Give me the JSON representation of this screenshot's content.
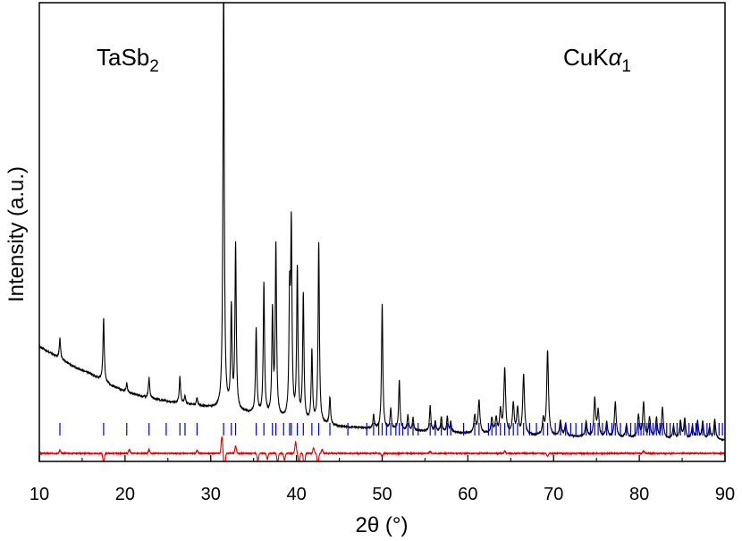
{
  "chart_data": {
    "type": "line",
    "title": "",
    "xlabel": "2θ (°)",
    "ylabel": "Intensity (a.u.)",
    "xlim": [
      10,
      90
    ],
    "ylim": [
      0,
      100
    ],
    "x_ticks": [
      "10",
      "20",
      "30",
      "40",
      "50",
      "60",
      "70",
      "80",
      "90"
    ],
    "y_ticks_shown": false,
    "grid": false,
    "legend": "none",
    "annotations": [
      {
        "text": "TaSb",
        "sub": "2",
        "position": "top-left"
      },
      {
        "text": "CuK",
        "italic": "α",
        "sub": "1",
        "position": "top-right"
      }
    ],
    "colors": {
      "observed": "#000000",
      "bragg": "#0000cc",
      "difference": "#e00000"
    },
    "series": [
      {
        "kind": "observed",
        "baseline": [
          [
            10,
            21.5
          ],
          [
            12,
            19.5
          ],
          [
            14,
            17.5
          ],
          [
            16,
            16.0
          ],
          [
            18,
            14.0
          ],
          [
            20,
            12.5
          ],
          [
            22,
            11.5
          ],
          [
            25,
            10.5
          ],
          [
            28,
            9.8
          ],
          [
            31,
            9.0
          ],
          [
            35,
            8.0
          ],
          [
            40,
            6.5
          ],
          [
            45,
            5.5
          ],
          [
            50,
            5.0
          ],
          [
            60,
            4.2
          ],
          [
            70,
            3.6
          ],
          [
            80,
            3.2
          ],
          [
            90,
            2.8
          ]
        ],
        "peaks": [
          [
            12.4,
            4.0
          ],
          [
            17.5,
            12.5
          ],
          [
            20.2,
            1.8
          ],
          [
            22.8,
            4.0
          ],
          [
            26.4,
            5.2
          ],
          [
            27.0,
            1.5
          ],
          [
            28.4,
            1.5
          ],
          [
            31.5,
            86.0
          ],
          [
            32.4,
            20.0
          ],
          [
            32.9,
            33.0
          ],
          [
            35.3,
            17.0
          ],
          [
            36.2,
            26.0
          ],
          [
            37.2,
            20.5
          ],
          [
            37.6,
            34.0
          ],
          [
            39.2,
            23.0
          ],
          [
            39.4,
            37.0
          ],
          [
            40.1,
            30.0
          ],
          [
            40.8,
            25.0
          ],
          [
            41.8,
            14.0
          ],
          [
            42.6,
            36.0
          ],
          [
            43.9,
            5.5
          ],
          [
            49.0,
            2.5
          ],
          [
            50.0,
            25.0
          ],
          [
            51.0,
            4.0
          ],
          [
            52.0,
            10.0
          ],
          [
            53.0,
            3.0
          ],
          [
            53.6,
            2.5
          ],
          [
            55.6,
            5.0
          ],
          [
            56.2,
            2.0
          ],
          [
            56.9,
            3.0
          ],
          [
            57.6,
            3.0
          ],
          [
            58.0,
            2.0
          ],
          [
            60.8,
            3.5
          ],
          [
            61.3,
            6.5
          ],
          [
            62.8,
            3.0
          ],
          [
            63.3,
            3.0
          ],
          [
            63.8,
            4.5
          ],
          [
            64.3,
            13.0
          ],
          [
            65.3,
            6.0
          ],
          [
            65.8,
            5.0
          ],
          [
            66.5,
            12.0
          ],
          [
            68.8,
            3.0
          ],
          [
            69.3,
            17.0
          ],
          [
            70.8,
            3.0
          ],
          [
            71.4,
            2.5
          ],
          [
            73.8,
            3.0
          ],
          [
            74.8,
            7.5
          ],
          [
            75.2,
            5.0
          ],
          [
            76.2,
            3.0
          ],
          [
            77.2,
            7.0
          ],
          [
            78.5,
            2.5
          ],
          [
            79.9,
            4.5
          ],
          [
            80.5,
            7.0
          ],
          [
            81.2,
            4.0
          ],
          [
            82.0,
            4.0
          ],
          [
            82.7,
            6.0
          ],
          [
            84.0,
            2.5
          ],
          [
            84.8,
            3.5
          ],
          [
            85.3,
            4.0
          ],
          [
            86.2,
            2.5
          ],
          [
            86.8,
            3.5
          ],
          [
            87.4,
            3.5
          ],
          [
            88.2,
            2.5
          ],
          [
            88.8,
            4.0
          ]
        ]
      },
      {
        "kind": "bragg",
        "positions": [
          12.4,
          17.5,
          20.2,
          22.8,
          24.8,
          26.4,
          27.0,
          28.4,
          31.5,
          32.4,
          32.9,
          35.3,
          36.2,
          37.2,
          37.6,
          38.5,
          39.2,
          39.4,
          40.1,
          40.8,
          41.8,
          42.6,
          43.9,
          46.0,
          48.2,
          49.0,
          49.6,
          50.0,
          50.5,
          51.0,
          51.6,
          52.0,
          52.4,
          53.0,
          53.6,
          54.2,
          55.6,
          56.2,
          56.9,
          57.6,
          58.0,
          59.5,
          60.8,
          61.3,
          62.4,
          62.8,
          63.3,
          63.8,
          64.3,
          64.8,
          65.3,
          65.8,
          66.5,
          67.2,
          68.0,
          68.8,
          69.3,
          70.2,
          70.8,
          71.4,
          72.0,
          72.6,
          73.3,
          73.8,
          74.3,
          74.8,
          75.2,
          75.7,
          76.2,
          76.8,
          77.2,
          77.8,
          78.5,
          79.0,
          79.5,
          79.9,
          80.2,
          80.5,
          80.9,
          81.2,
          81.6,
          82.0,
          82.4,
          82.7,
          83.2,
          83.6,
          84.0,
          84.4,
          84.8,
          85.3,
          85.8,
          86.2,
          86.6,
          86.8,
          87.4,
          87.9,
          88.2,
          88.8,
          89.3,
          89.7
        ]
      },
      {
        "kind": "difference",
        "baseline": -13,
        "features": [
          [
            12.4,
            0.8
          ],
          [
            17.5,
            -2.5
          ],
          [
            20.5,
            1.0
          ],
          [
            22.8,
            1.0
          ],
          [
            28.4,
            0.8
          ],
          [
            31.3,
            4.5
          ],
          [
            31.6,
            -5.0
          ],
          [
            32.9,
            2.0
          ],
          [
            35.5,
            -2.0
          ],
          [
            36.6,
            -1.5
          ],
          [
            37.8,
            -2.5
          ],
          [
            38.6,
            -1.8
          ],
          [
            39.9,
            3.0
          ],
          [
            40.3,
            -2.5
          ],
          [
            40.9,
            -4.0
          ],
          [
            42.0,
            1.5
          ],
          [
            42.5,
            -3.5
          ],
          [
            43.0,
            1.0
          ],
          [
            50.0,
            -0.8
          ],
          [
            55.6,
            0.5
          ],
          [
            64.3,
            0.6
          ],
          [
            69.3,
            -0.8
          ],
          [
            80.5,
            0.6
          ]
        ]
      }
    ]
  }
}
